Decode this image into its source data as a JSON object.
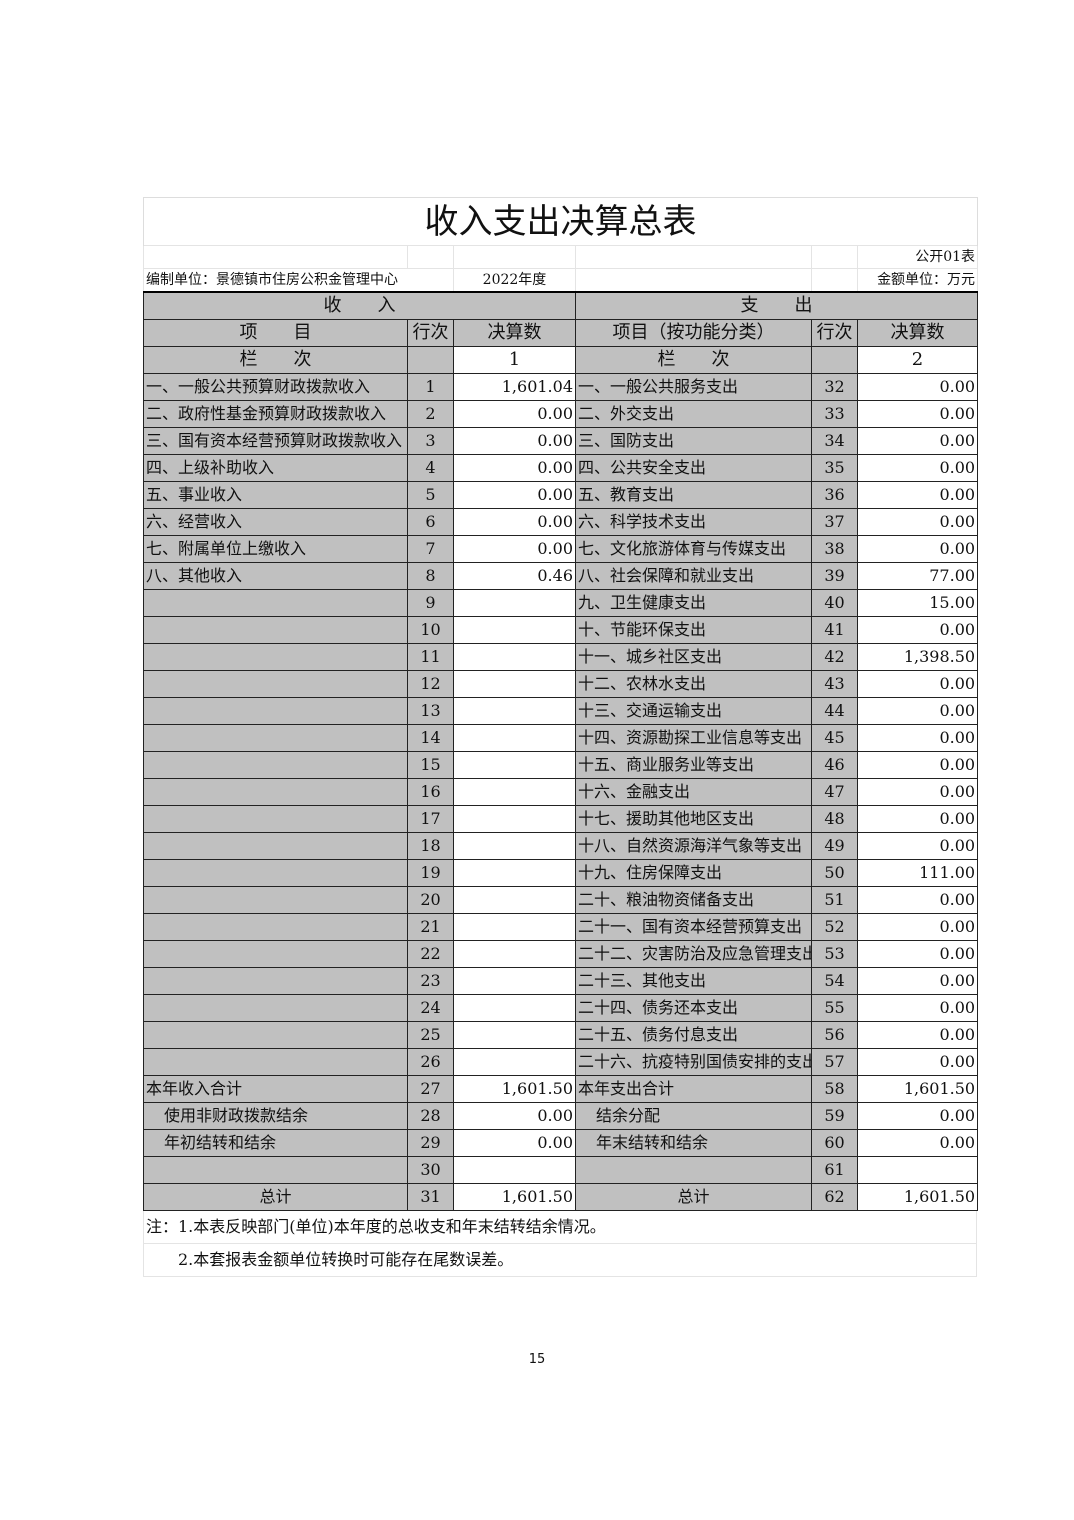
{
  "title": "收入支出决算总表",
  "table_code": "公开01表",
  "unit_label": "编制单位：景德镇市住房公积金管理中心",
  "year": "2022年度",
  "amount_unit": "金额单位：万元",
  "headers": {
    "income": "收　　入",
    "expense": "支　　出",
    "item": "项　　目",
    "line_no": "行次",
    "amount": "决算数",
    "exp_item": "项目（按功能分类）",
    "column": "栏　　次",
    "col1": "1",
    "col2": "2"
  },
  "rows": [
    {
      "in_item": "一、一般公共预算财政拨款收入",
      "in_no": "1",
      "in_amt": "1,601.04",
      "ex_item": "一、一般公共服务支出",
      "ex_no": "32",
      "ex_amt": "0.00"
    },
    {
      "in_item": "二、政府性基金预算财政拨款收入",
      "in_no": "2",
      "in_amt": "0.00",
      "ex_item": "二、外交支出",
      "ex_no": "33",
      "ex_amt": "0.00"
    },
    {
      "in_item": "三、国有资本经营预算财政拨款收入",
      "in_no": "3",
      "in_amt": "0.00",
      "ex_item": "三、国防支出",
      "ex_no": "34",
      "ex_amt": "0.00"
    },
    {
      "in_item": "四、上级补助收入",
      "in_no": "4",
      "in_amt": "0.00",
      "ex_item": "四、公共安全支出",
      "ex_no": "35",
      "ex_amt": "0.00"
    },
    {
      "in_item": "五、事业收入",
      "in_no": "5",
      "in_amt": "0.00",
      "ex_item": "五、教育支出",
      "ex_no": "36",
      "ex_amt": "0.00"
    },
    {
      "in_item": "六、经营收入",
      "in_no": "6",
      "in_amt": "0.00",
      "ex_item": "六、科学技术支出",
      "ex_no": "37",
      "ex_amt": "0.00"
    },
    {
      "in_item": "七、附属单位上缴收入",
      "in_no": "7",
      "in_amt": "0.00",
      "ex_item": "七、文化旅游体育与传媒支出",
      "ex_no": "38",
      "ex_amt": "0.00"
    },
    {
      "in_item": "八、其他收入",
      "in_no": "8",
      "in_amt": "0.46",
      "ex_item": "八、社会保障和就业支出",
      "ex_no": "39",
      "ex_amt": "77.00"
    },
    {
      "in_item": "",
      "in_no": "9",
      "in_amt": "",
      "ex_item": "九、卫生健康支出",
      "ex_no": "40",
      "ex_amt": "15.00"
    },
    {
      "in_item": "",
      "in_no": "10",
      "in_amt": "",
      "ex_item": "十、节能环保支出",
      "ex_no": "41",
      "ex_amt": "0.00"
    },
    {
      "in_item": "",
      "in_no": "11",
      "in_amt": "",
      "ex_item": "十一、城乡社区支出",
      "ex_no": "42",
      "ex_amt": "1,398.50"
    },
    {
      "in_item": "",
      "in_no": "12",
      "in_amt": "",
      "ex_item": "十二、农林水支出",
      "ex_no": "43",
      "ex_amt": "0.00"
    },
    {
      "in_item": "",
      "in_no": "13",
      "in_amt": "",
      "ex_item": "十三、交通运输支出",
      "ex_no": "44",
      "ex_amt": "0.00"
    },
    {
      "in_item": "",
      "in_no": "14",
      "in_amt": "",
      "ex_item": "十四、资源勘探工业信息等支出",
      "ex_no": "45",
      "ex_amt": "0.00"
    },
    {
      "in_item": "",
      "in_no": "15",
      "in_amt": "",
      "ex_item": "十五、商业服务业等支出",
      "ex_no": "46",
      "ex_amt": "0.00"
    },
    {
      "in_item": "",
      "in_no": "16",
      "in_amt": "",
      "ex_item": "十六、金融支出",
      "ex_no": "47",
      "ex_amt": "0.00"
    },
    {
      "in_item": "",
      "in_no": "17",
      "in_amt": "",
      "ex_item": "十七、援助其他地区支出",
      "ex_no": "48",
      "ex_amt": "0.00"
    },
    {
      "in_item": "",
      "in_no": "18",
      "in_amt": "",
      "ex_item": "十八、自然资源海洋气象等支出",
      "ex_no": "49",
      "ex_amt": "0.00"
    },
    {
      "in_item": "",
      "in_no": "19",
      "in_amt": "",
      "ex_item": "十九、住房保障支出",
      "ex_no": "50",
      "ex_amt": "111.00"
    },
    {
      "in_item": "",
      "in_no": "20",
      "in_amt": "",
      "ex_item": "二十、粮油物资储备支出",
      "ex_no": "51",
      "ex_amt": "0.00"
    },
    {
      "in_item": "",
      "in_no": "21",
      "in_amt": "",
      "ex_item": "二十一、国有资本经营预算支出",
      "ex_no": "52",
      "ex_amt": "0.00"
    },
    {
      "in_item": "",
      "in_no": "22",
      "in_amt": "",
      "ex_item": "二十二、灾害防治及应急管理支出",
      "ex_no": "53",
      "ex_amt": "0.00"
    },
    {
      "in_item": "",
      "in_no": "23",
      "in_amt": "",
      "ex_item": "二十三、其他支出",
      "ex_no": "54",
      "ex_amt": "0.00"
    },
    {
      "in_item": "",
      "in_no": "24",
      "in_amt": "",
      "ex_item": "二十四、债务还本支出",
      "ex_no": "55",
      "ex_amt": "0.00"
    },
    {
      "in_item": "",
      "in_no": "25",
      "in_amt": "",
      "ex_item": "二十五、债务付息支出",
      "ex_no": "56",
      "ex_amt": "0.00"
    },
    {
      "in_item": "",
      "in_no": "26",
      "in_amt": "",
      "ex_item": "二十六、抗疫特别国债安排的支出",
      "ex_no": "57",
      "ex_amt": "0.00"
    },
    {
      "in_item": "本年收入合计",
      "in_no": "27",
      "in_amt": "1,601.50",
      "ex_item": "本年支出合计",
      "ex_no": "58",
      "ex_amt": "1,601.50"
    },
    {
      "in_item": "使用非财政拨款结余",
      "in_no": "28",
      "in_amt": "0.00",
      "ex_item": "结余分配",
      "ex_no": "59",
      "ex_amt": "0.00",
      "indent": true
    },
    {
      "in_item": "年初结转和结余",
      "in_no": "29",
      "in_amt": "0.00",
      "ex_item": "年末结转和结余",
      "ex_no": "60",
      "ex_amt": "0.00",
      "indent": true
    },
    {
      "in_item": "",
      "in_no": "30",
      "in_amt": "",
      "ex_item": "",
      "ex_no": "61",
      "ex_amt": ""
    },
    {
      "in_item": "总计",
      "in_no": "31",
      "in_amt": "1,601.50",
      "ex_item": "总计",
      "ex_no": "62",
      "ex_amt": "1,601.50",
      "center": true
    }
  ],
  "notes": [
    "注：1.本表反映部门(单位)本年度的总收支和年末结转结余情况。",
    "2.本套报表金额单位转换时可能存在尾数误差。"
  ],
  "page_number": "15",
  "colors": {
    "header_fill": "#c0c0c0",
    "border": "#222222"
  }
}
